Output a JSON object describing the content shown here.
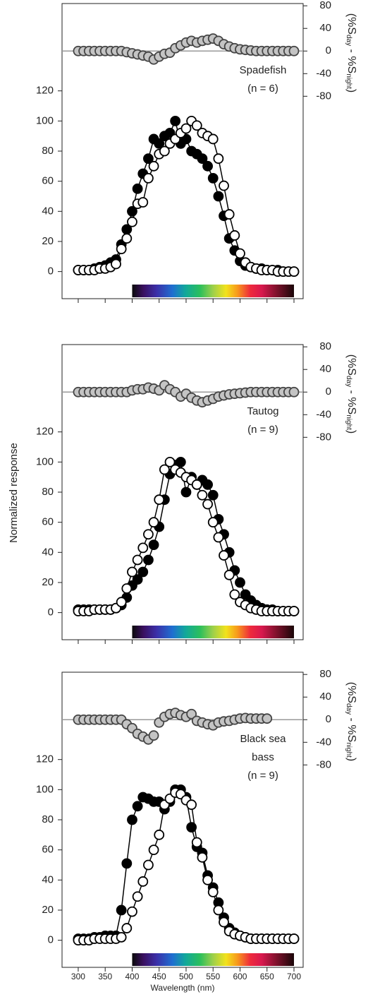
{
  "chart_data": [
    {
      "type": "line",
      "panel_label": [
        "Spadefish",
        "(n = 6)"
      ],
      "y2label": [
        "(%S",
        "day",
        " - %S",
        "night",
        ")"
      ],
      "x": [
        300,
        310,
        320,
        330,
        340,
        350,
        360,
        370,
        380,
        390,
        400,
        410,
        420,
        430,
        440,
        450,
        460,
        470,
        480,
        490,
        500,
        510,
        520,
        530,
        540,
        550,
        560,
        570,
        580,
        590,
        600,
        610,
        620,
        630,
        640,
        650,
        660,
        670,
        680,
        690,
        700
      ],
      "xlim": [
        270,
        717
      ],
      "xticks": [
        300,
        350,
        400,
        450,
        500,
        550,
        600,
        650,
        700
      ],
      "show_xtick_labels": false,
      "ylim": [
        -18,
        178
      ],
      "yticks": [
        0,
        20,
        40,
        60,
        80,
        100,
        120
      ],
      "y2lim": [
        -438,
        84
      ],
      "y2ticks": [
        -80,
        -40,
        0,
        40,
        80
      ],
      "spectrum": [
        400,
        700
      ],
      "series": [
        {
          "color": "#000000",
          "edge": "#000000",
          "values": [
            1,
            1,
            1,
            2,
            3,
            4,
            6,
            8,
            18,
            28,
            40,
            55,
            65,
            75,
            88,
            85,
            90,
            92,
            100,
            85,
            88,
            80,
            78,
            75,
            70,
            62,
            50,
            37,
            22,
            14,
            7,
            4,
            3,
            2,
            2,
            1,
            1,
            1,
            0,
            0,
            0
          ]
        },
        {
          "color": "#ffffff",
          "edge": "#000000",
          "values": [
            1,
            1,
            1,
            1,
            2,
            2,
            3,
            5,
            15,
            22,
            33,
            45,
            46,
            62,
            70,
            78,
            80,
            85,
            88,
            92,
            95,
            100,
            97,
            92,
            90,
            88,
            75,
            57,
            38,
            24,
            12,
            6,
            3,
            2,
            1,
            1,
            1,
            0,
            0,
            0,
            0
          ]
        },
        {
          "color": "#c4c4c4",
          "edge": "#444444",
          "axis": "y2",
          "values": [
            0,
            0,
            0,
            0,
            0,
            0,
            0,
            0,
            0,
            -2,
            -4,
            -6,
            -8,
            -10,
            -15,
            -10,
            -5,
            -3,
            5,
            10,
            15,
            18,
            15,
            18,
            20,
            22,
            18,
            12,
            8,
            5,
            3,
            2,
            1,
            0,
            0,
            0,
            0,
            0,
            0,
            0,
            0
          ]
        }
      ]
    },
    {
      "type": "line",
      "panel_label": [
        "Tautog",
        "(n = 9)"
      ],
      "ylabel": "Normalized response",
      "y2label": [
        "(%S",
        "day",
        " - %S",
        "night",
        ")"
      ],
      "x": [
        300,
        310,
        320,
        330,
        340,
        350,
        360,
        370,
        380,
        390,
        400,
        410,
        420,
        430,
        440,
        450,
        460,
        470,
        480,
        490,
        500,
        510,
        520,
        530,
        540,
        550,
        560,
        570,
        580,
        590,
        600,
        610,
        620,
        630,
        640,
        650,
        660,
        670,
        680,
        690,
        700
      ],
      "xlim": [
        270,
        717
      ],
      "xticks": [
        300,
        350,
        400,
        450,
        500,
        550,
        600,
        650,
        700
      ],
      "show_xtick_labels": false,
      "ylim": [
        -18,
        178
      ],
      "yticks": [
        0,
        20,
        40,
        60,
        80,
        100,
        120
      ],
      "y2lim": [
        -438,
        84
      ],
      "y2ticks": [
        -80,
        -40,
        0,
        40,
        80
      ],
      "spectrum": [
        400,
        700
      ],
      "series": [
        {
          "color": "#000000",
          "edge": "#000000",
          "values": [
            2,
            2,
            2,
            2,
            2,
            2,
            2,
            3,
            5,
            10,
            18,
            22,
            27,
            35,
            45,
            57,
            75,
            92,
            98,
            100,
            80,
            90,
            85,
            88,
            85,
            78,
            62,
            52,
            40,
            28,
            20,
            12,
            8,
            5,
            3,
            2,
            2,
            1,
            1,
            1,
            1
          ]
        },
        {
          "color": "#ffffff",
          "edge": "#000000",
          "values": [
            1,
            1,
            1,
            2,
            2,
            2,
            2,
            3,
            7,
            16,
            27,
            35,
            43,
            52,
            60,
            75,
            95,
            100,
            95,
            93,
            90,
            88,
            85,
            78,
            72,
            60,
            50,
            38,
            25,
            12,
            7,
            5,
            3,
            2,
            1,
            1,
            1,
            1,
            1,
            1,
            1
          ]
        },
        {
          "color": "#c4c4c4",
          "edge": "#444444",
          "axis": "y2",
          "values": [
            0,
            0,
            0,
            0,
            0,
            0,
            0,
            0,
            0,
            0,
            3,
            5,
            5,
            8,
            6,
            3,
            12,
            5,
            0,
            -8,
            -3,
            -10,
            -15,
            -18,
            -15,
            -12,
            -8,
            -6,
            -4,
            -3,
            -2,
            -1,
            0,
            0,
            0,
            0,
            0,
            0,
            0,
            0,
            0
          ]
        }
      ]
    },
    {
      "type": "line",
      "panel_label": [
        "Black sea",
        "bass",
        "(n = 9)"
      ],
      "xlabel": "Wavelength (nm)",
      "y2label": [
        "(%S",
        "day",
        " - %S",
        "night",
        ")"
      ],
      "x": [
        300,
        310,
        320,
        330,
        340,
        350,
        360,
        370,
        380,
        390,
        400,
        410,
        420,
        430,
        440,
        450,
        460,
        470,
        480,
        490,
        500,
        510,
        520,
        530,
        540,
        550,
        560,
        570,
        580,
        590,
        600,
        610,
        620,
        630,
        640,
        650,
        660,
        670,
        680,
        690,
        700
      ],
      "xlim": [
        270,
        717
      ],
      "xticks": [
        300,
        350,
        400,
        450,
        500,
        550,
        600,
        650,
        700
      ],
      "show_xtick_labels": true,
      "ylim": [
        -18,
        178
      ],
      "yticks": [
        0,
        20,
        40,
        60,
        80,
        100,
        120
      ],
      "y2lim": [
        -438,
        84
      ],
      "y2ticks": [
        -80,
        -40,
        0,
        40,
        80
      ],
      "spectrum": [
        400,
        700
      ],
      "series": [
        {
          "color": "#000000",
          "edge": "#000000",
          "values": [
            1,
            1,
            1,
            2,
            2,
            3,
            3,
            3,
            20,
            51,
            80,
            89,
            95,
            94,
            92,
            92,
            87,
            92,
            100,
            100,
            95,
            75,
            62,
            58,
            43,
            35,
            25,
            15,
            8,
            5,
            3,
            2,
            1,
            1,
            1,
            1,
            1,
            1,
            1,
            1,
            1
          ]
        },
        {
          "color": "#ffffff",
          "edge": "#000000",
          "values": [
            0,
            0,
            0,
            1,
            1,
            1,
            1,
            1,
            2,
            8,
            19,
            29,
            39,
            50,
            60,
            70,
            90,
            94,
            98,
            97,
            93,
            90,
            65,
            55,
            40,
            32,
            20,
            12,
            6,
            4,
            3,
            2,
            1,
            1,
            1,
            1,
            1,
            1,
            1,
            1,
            1
          ]
        },
        {
          "color": "#c4c4c4",
          "edge": "#444444",
          "axis": "y2",
          "values": [
            0,
            0,
            0,
            0,
            0,
            0,
            0,
            0,
            0,
            -8,
            -15,
            -25,
            -30,
            -35,
            -28,
            -5,
            5,
            10,
            12,
            8,
            5,
            10,
            -2,
            -5,
            -8,
            -10,
            -5,
            -3,
            -2,
            0,
            2,
            3,
            2,
            2,
            2,
            2,
            null,
            null,
            null,
            null,
            null
          ]
        }
      ]
    }
  ]
}
